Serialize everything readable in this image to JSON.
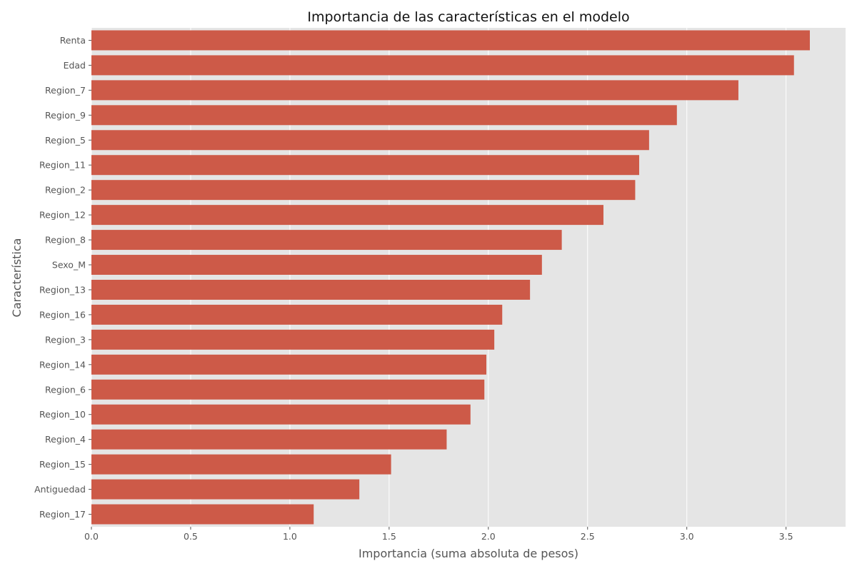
{
  "chart_data": {
    "type": "bar",
    "orientation": "horizontal",
    "title": "Importancia de las características en el modelo",
    "xlabel": "Importancia (suma absoluta de pesos)",
    "ylabel": "Característica",
    "xlim": [
      0,
      3.8
    ],
    "xticks": [
      "0.0",
      "0.5",
      "1.0",
      "1.5",
      "2.0",
      "2.5",
      "3.0",
      "3.5"
    ],
    "grid": true,
    "bar_color": "#cd5a48",
    "background_color": "#e5e5e5",
    "categories": [
      "Renta",
      "Edad",
      "Region_7",
      "Region_9",
      "Region_5",
      "Region_11",
      "Region_2",
      "Region_12",
      "Region_8",
      "Sexo_M",
      "Region_13",
      "Region_16",
      "Region_3",
      "Region_14",
      "Region_6",
      "Region_10",
      "Region_4",
      "Region_15",
      "Antiguedad",
      "Region_17"
    ],
    "values": [
      3.62,
      3.54,
      3.26,
      2.95,
      2.81,
      2.76,
      2.74,
      2.58,
      2.37,
      2.27,
      2.21,
      2.07,
      2.03,
      1.99,
      1.98,
      1.91,
      1.79,
      1.51,
      1.35,
      1.12
    ]
  }
}
